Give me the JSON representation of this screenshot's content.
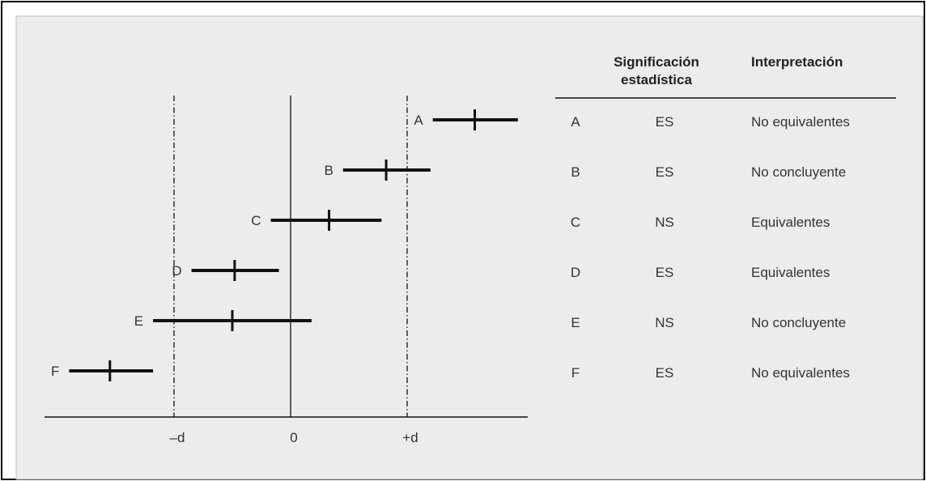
{
  "chart_data": {
    "type": "forest-plot",
    "axis": {
      "ticks": [
        {
          "label": "–d",
          "value": -1
        },
        {
          "label": "0",
          "value": 0
        },
        {
          "label": "+d",
          "value": 1
        }
      ],
      "reference_lines": [
        {
          "value": -1,
          "style": "dash-dot"
        },
        {
          "value": 0,
          "style": "solid"
        },
        {
          "value": 1,
          "style": "dash-dot"
        }
      ],
      "xlim": [
        -2.05,
        1.95
      ]
    },
    "rows": [
      {
        "label": "A",
        "estimate": 1.58,
        "low": 1.22,
        "high": 1.95
      },
      {
        "label": "B",
        "estimate": 0.82,
        "low": 0.45,
        "high": 1.2
      },
      {
        "label": "C",
        "estimate": 0.33,
        "low": -0.17,
        "high": 0.78
      },
      {
        "label": "D",
        "estimate": -0.48,
        "low": -0.85,
        "high": -0.1
      },
      {
        "label": "E",
        "estimate": -0.5,
        "low": -1.18,
        "high": 0.18
      },
      {
        "label": "F",
        "estimate": -1.55,
        "low": -1.9,
        "high": -1.18
      }
    ]
  },
  "table": {
    "headers": {
      "significance_line1": "Significación",
      "significance_line2": "estadística",
      "interpretation": "Interpretación"
    },
    "rows": [
      {
        "label": "A",
        "significance": "ES",
        "interpretation": "No equivalentes"
      },
      {
        "label": "B",
        "significance": "ES",
        "interpretation": "No concluyente"
      },
      {
        "label": "C",
        "significance": "NS",
        "interpretation": "Equivalentes"
      },
      {
        "label": "D",
        "significance": "ES",
        "interpretation": "Equivalentes"
      },
      {
        "label": "E",
        "significance": "NS",
        "interpretation": "No concluyente"
      },
      {
        "label": "F",
        "significance": "ES",
        "interpretation": "No equivalentes"
      }
    ]
  },
  "colors": {
    "panel": "#ececec",
    "ink": "#111111",
    "frame": "#000000",
    "text": "#333333"
  }
}
